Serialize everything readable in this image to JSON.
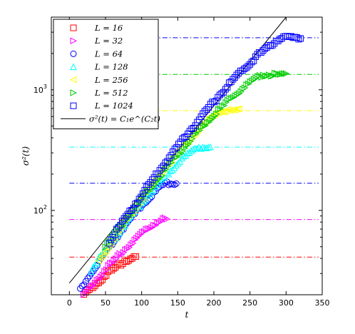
{
  "chart_data": {
    "type": "scatter",
    "xlabel": "t",
    "ylabel": "σ²(t)",
    "x_ticks": [
      "0",
      "50",
      "100",
      "150",
      "200",
      "250",
      "300",
      "350"
    ],
    "y_ticks": [
      {
        "value": 100,
        "base": "10",
        "exp": "2"
      },
      {
        "value": 1000,
        "base": "10",
        "exp": "3"
      }
    ],
    "xlim": [
      -25,
      350
    ],
    "ylim": [
      20,
      4000
    ],
    "yscale": "log",
    "legend_position": "top-left",
    "series": [
      {
        "name": "L = 16",
        "label_var": "L",
        "label_val": "16",
        "marker": "square",
        "color": "#ff0000",
        "x_start": 20,
        "x_end": 92,
        "y_start": 20,
        "y_end": 41,
        "sat_from": 88,
        "plateau": 41
      },
      {
        "name": "L = 32",
        "label_var": "L",
        "label_val": "32",
        "marker": "triangle-right",
        "color": "#ff00ff",
        "x_start": 20,
        "x_end": 135,
        "y_start": 20,
        "y_end": 84,
        "sat_from": 130,
        "plateau": 84
      },
      {
        "name": "L = 64",
        "label_var": "L",
        "label_val": "64",
        "marker": "circle",
        "color": "#0000ff",
        "x_start": 15,
        "x_end": 148,
        "y_start": 22,
        "y_end": 168,
        "sat_from": 135,
        "plateau": 168
      },
      {
        "name": "L = 128",
        "label_var": "L",
        "label_val": "128",
        "marker": "triangle-up",
        "color": "#00ffff",
        "x_start": 30,
        "x_end": 195,
        "y_start": 32,
        "y_end": 335,
        "sat_from": 180,
        "plateau": 335
      },
      {
        "name": "L = 256",
        "label_var": "L",
        "label_val": "256",
        "marker": "triangle-left",
        "color": "#ffff00",
        "x_start": 40,
        "x_end": 235,
        "y_start": 38,
        "y_end": 670,
        "sat_from": 210,
        "plateau": 670
      },
      {
        "name": "L = 512",
        "label_var": "L",
        "label_val": "512",
        "marker": "triangle-right",
        "color": "#00cc00",
        "x_start": 50,
        "x_end": 300,
        "y_start": 50,
        "y_end": 1340,
        "sat_from": 270,
        "plateau": 1340
      },
      {
        "name": "L = 1024",
        "label_var": "L",
        "label_val": "1024",
        "marker": "square",
        "color": "#0000ff",
        "x_start": 55,
        "x_end": 320,
        "y_start": 55,
        "y_end": 2700,
        "sat_from": 295,
        "plateau": 2700
      }
    ],
    "fit": {
      "name": "σ²(t) = C₁e^(C₂t)",
      "color": "#000000",
      "points": [
        {
          "x": 0,
          "y": 25
        },
        {
          "x": 300,
          "y": 4000
        }
      ]
    },
    "plateaus": [
      {
        "y": 41,
        "color": "#ff0000"
      },
      {
        "y": 84,
        "color": "#ff00ff"
      },
      {
        "y": 168,
        "color": "#0000ff"
      },
      {
        "y": 335,
        "color": "#00ffff"
      },
      {
        "y": 670,
        "color": "#ffff00"
      },
      {
        "y": 1340,
        "color": "#00cc00"
      },
      {
        "y": 2700,
        "color": "#0000ff"
      }
    ]
  }
}
